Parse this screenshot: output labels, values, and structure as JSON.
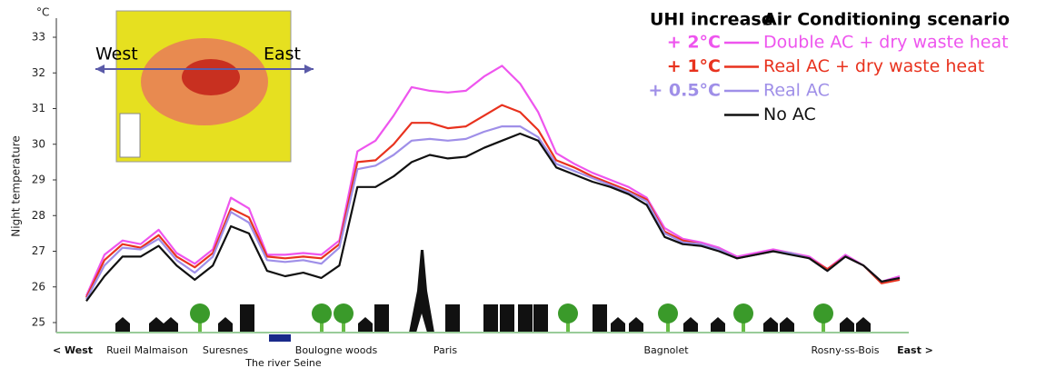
{
  "chart_data": {
    "type": "line",
    "y_unit": "°C",
    "ylabel": "Night temperature",
    "ylim": [
      25,
      33
    ],
    "yticks": [
      25,
      26,
      27,
      28,
      29,
      30,
      31,
      32,
      33
    ],
    "legend_headers": [
      "UHI increase",
      "Air Conditioning scenario"
    ],
    "legend_position": "upper right",
    "map_labels": [
      "West",
      "East"
    ],
    "places": [
      "< West",
      "Rueil Malmaison",
      "Suresnes",
      "The river Seine",
      "Boulogne woods",
      "Paris",
      "Bagnolet",
      "Rosny-ss-Bois",
      "East >"
    ],
    "series": [
      {
        "name": "Double AC + dry waste heat",
        "uhi_label": "+ 2°C",
        "color": "#ee55ee",
        "values": [
          25.75,
          26.9,
          27.3,
          27.2,
          27.6,
          26.95,
          26.65,
          27.05,
          28.5,
          28.2,
          26.9,
          26.9,
          26.95,
          26.9,
          27.3,
          29.8,
          30.1,
          30.8,
          31.6,
          31.5,
          31.45,
          31.5,
          31.9,
          32.2,
          31.7,
          30.9,
          29.75,
          29.45,
          29.2,
          29.0,
          28.8,
          28.5,
          27.65,
          27.35,
          27.25,
          27.1,
          26.85,
          26.95,
          27.05,
          26.95,
          26.85,
          26.5,
          26.9,
          26.6,
          26.15,
          26.3
        ]
      },
      {
        "name": "Real AC + dry waste heat",
        "uhi_label": "+ 1°C",
        "color": "#e8321e",
        "values": [
          25.7,
          26.75,
          27.2,
          27.1,
          27.45,
          26.85,
          26.55,
          26.95,
          28.2,
          27.95,
          26.85,
          26.8,
          26.85,
          26.8,
          27.2,
          29.5,
          29.55,
          30.0,
          30.6,
          30.6,
          30.45,
          30.5,
          30.8,
          31.1,
          30.9,
          30.4,
          29.55,
          29.35,
          29.1,
          28.9,
          28.7,
          28.45,
          27.55,
          27.3,
          27.2,
          27.05,
          26.8,
          26.9,
          27.0,
          26.95,
          26.8,
          26.5,
          26.85,
          26.6,
          26.1,
          26.2
        ]
      },
      {
        "name": "Real AC",
        "uhi_label": "+ 0.5°C",
        "color": "#9f8fe8",
        "values": [
          25.65,
          26.6,
          27.1,
          27.05,
          27.35,
          26.75,
          26.4,
          26.85,
          28.1,
          27.8,
          26.75,
          26.7,
          26.75,
          26.65,
          27.1,
          29.3,
          29.4,
          29.7,
          30.1,
          30.15,
          30.1,
          30.15,
          30.35,
          30.5,
          30.5,
          30.2,
          29.45,
          29.25,
          29.05,
          28.85,
          28.65,
          28.4,
          27.5,
          27.25,
          27.2,
          27.05,
          26.8,
          26.9,
          27.0,
          26.95,
          26.8,
          26.45,
          26.85,
          26.6,
          26.15,
          26.25
        ]
      },
      {
        "name": "No AC",
        "color": "#111111",
        "values": [
          25.6,
          26.3,
          26.85,
          26.85,
          27.15,
          26.6,
          26.2,
          26.6,
          27.7,
          27.5,
          26.45,
          26.3,
          26.4,
          26.25,
          26.6,
          28.8,
          28.8,
          29.1,
          29.5,
          29.7,
          29.6,
          29.65,
          29.9,
          30.1,
          30.3,
          30.1,
          29.35,
          29.15,
          28.95,
          28.8,
          28.6,
          28.3,
          27.4,
          27.2,
          27.15,
          27.0,
          26.8,
          26.9,
          27.0,
          26.9,
          26.8,
          26.45,
          26.85,
          26.6,
          26.15,
          26.25
        ]
      }
    ]
  }
}
